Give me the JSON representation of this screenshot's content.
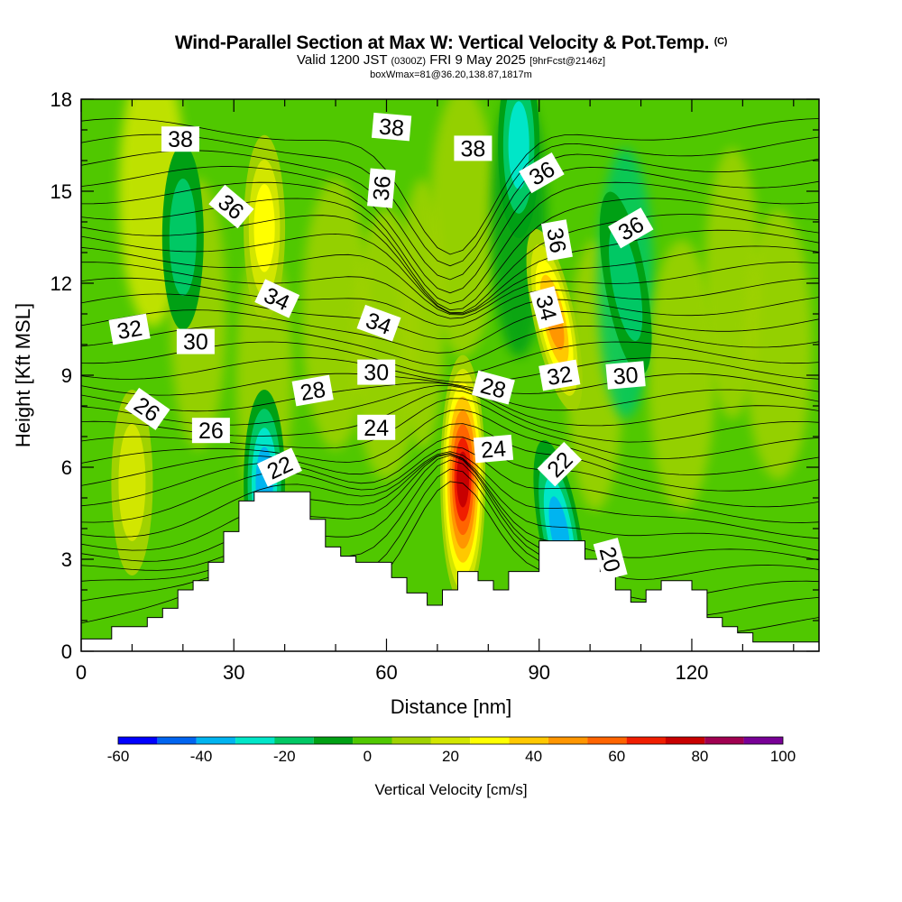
{
  "title": {
    "main": "Wind-Parallel Section at Max W: Vertical Velocity & Pot.Temp.",
    "copyright": "(C)",
    "valid_prefix": "Valid 1200 JST",
    "valid_utc": "(0300Z)",
    "valid_date": "FRI 9 May 2025",
    "forecast": "[9hrFcst@2146z]",
    "box_info": "boxWmax=81@36.20,138.87,1817m"
  },
  "chart_data": {
    "type": "heatmap",
    "xlabel": "Distance [nm]",
    "ylabel": "Height [Kft MSL]",
    "xlim": [
      0,
      145
    ],
    "ylim": [
      0,
      18
    ],
    "x_ticks": [
      "0",
      "30",
      "60",
      "90",
      "120"
    ],
    "y_ticks": [
      "0",
      "3",
      "6",
      "9",
      "12",
      "15",
      "18"
    ],
    "colorbar": {
      "label": "Vertical Velocity [cm/s]",
      "ticks": [
        "-60",
        "-40",
        "-20",
        "0",
        "20",
        "40",
        "60",
        "80",
        "100"
      ],
      "bounds": [
        -60,
        100
      ],
      "colors": [
        "#0000ff",
        "#0064f0",
        "#00b4f0",
        "#00e6c8",
        "#00c864",
        "#00a014",
        "#50c800",
        "#a0d200",
        "#d2e600",
        "#ffff00",
        "#ffc800",
        "#ff9600",
        "#ff6400",
        "#f01e00",
        "#c80000",
        "#a00050",
        "#780096"
      ]
    },
    "terrain_kft": [
      [
        0,
        0.4
      ],
      [
        6,
        0.4
      ],
      [
        6,
        0.8
      ],
      [
        13,
        0.8
      ],
      [
        13,
        1.1
      ],
      [
        16,
        1.1
      ],
      [
        16,
        1.4
      ],
      [
        19,
        1.4
      ],
      [
        19,
        2.0
      ],
      [
        22,
        2.0
      ],
      [
        22,
        2.3
      ],
      [
        25,
        2.3
      ],
      [
        25,
        2.9
      ],
      [
        28,
        2.9
      ],
      [
        28,
        3.9
      ],
      [
        31,
        3.9
      ],
      [
        31,
        4.9
      ],
      [
        34,
        4.9
      ],
      [
        34,
        5.2
      ],
      [
        45,
        5.2
      ],
      [
        45,
        4.3
      ],
      [
        48,
        4.3
      ],
      [
        48,
        3.4
      ],
      [
        51,
        3.4
      ],
      [
        51,
        3.1
      ],
      [
        54,
        3.1
      ],
      [
        54,
        2.9
      ],
      [
        61,
        2.9
      ],
      [
        61,
        2.4
      ],
      [
        64,
        2.4
      ],
      [
        64,
        1.9
      ],
      [
        68,
        1.9
      ],
      [
        68,
        1.5
      ],
      [
        71,
        1.5
      ],
      [
        71,
        2.0
      ],
      [
        74,
        2.0
      ],
      [
        74,
        2.6
      ],
      [
        78,
        2.6
      ],
      [
        78,
        2.3
      ],
      [
        81,
        2.3
      ],
      [
        81,
        2.0
      ],
      [
        84,
        2.0
      ],
      [
        84,
        2.6
      ],
      [
        90,
        2.6
      ],
      [
        90,
        3.6
      ],
      [
        99,
        3.6
      ],
      [
        99,
        3.0
      ],
      [
        102,
        3.0
      ],
      [
        102,
        2.6
      ],
      [
        105,
        2.6
      ],
      [
        105,
        2.0
      ],
      [
        108,
        2.0
      ],
      [
        108,
        1.6
      ],
      [
        111,
        1.6
      ],
      [
        111,
        2.0
      ],
      [
        114,
        2.0
      ],
      [
        114,
        2.3
      ],
      [
        120,
        2.3
      ],
      [
        120,
        2.0
      ],
      [
        123,
        2.0
      ],
      [
        123,
        1.1
      ],
      [
        126,
        1.1
      ],
      [
        126,
        0.8
      ],
      [
        129,
        0.8
      ],
      [
        129,
        0.6
      ],
      [
        132,
        0.6
      ],
      [
        132,
        0.3
      ],
      [
        145,
        0.3
      ]
    ],
    "vertical_velocity_features_cm_s": [
      {
        "x": 75,
        "y": 5.6,
        "value": 81
      },
      {
        "x": 93,
        "y": 10.8,
        "value": 55
      },
      {
        "x": 36,
        "y": 13.8,
        "value": 30
      },
      {
        "x": 10,
        "y": 5.5,
        "value": 25
      },
      {
        "x": 94,
        "y": 3.9,
        "value": -45
      },
      {
        "x": 36,
        "y": 5.5,
        "value": -40
      },
      {
        "x": 86,
        "y": 16.5,
        "value": -30
      },
      {
        "x": 20,
        "y": 13.5,
        "value": -25
      },
      {
        "x": 107,
        "y": 12.0,
        "value": -20
      }
    ],
    "isentropes_label_interval": 2,
    "contour_labels": [
      {
        "text": "38",
        "x": 19.5,
        "y": 16.7,
        "rot": 0
      },
      {
        "text": "38",
        "x": 61,
        "y": 17.1,
        "rot": 5
      },
      {
        "text": "38",
        "x": 77,
        "y": 16.4,
        "rot": 0
      },
      {
        "text": "36",
        "x": 29.5,
        "y": 14.5,
        "rot": 40
      },
      {
        "text": "36",
        "x": 59,
        "y": 15.1,
        "rot": -85
      },
      {
        "text": "36",
        "x": 90.5,
        "y": 15.6,
        "rot": -30
      },
      {
        "text": "36",
        "x": 93.5,
        "y": 13.4,
        "rot": 80
      },
      {
        "text": "36",
        "x": 108,
        "y": 13.8,
        "rot": -30
      },
      {
        "text": "34",
        "x": 38.5,
        "y": 11.5,
        "rot": 25
      },
      {
        "text": "34",
        "x": 58.5,
        "y": 10.7,
        "rot": 20
      },
      {
        "text": "34",
        "x": 91.5,
        "y": 11.2,
        "rot": 75
      },
      {
        "text": "32",
        "x": 9.5,
        "y": 10.5,
        "rot": -10
      },
      {
        "text": "32",
        "x": 94,
        "y": 9.0,
        "rot": -10
      },
      {
        "text": "30",
        "x": 22.5,
        "y": 10.1,
        "rot": 0
      },
      {
        "text": "30",
        "x": 58,
        "y": 9.1,
        "rot": 0
      },
      {
        "text": "30",
        "x": 107,
        "y": 9.0,
        "rot": -5
      },
      {
        "text": "28",
        "x": 45.5,
        "y": 8.5,
        "rot": -10
      },
      {
        "text": "28",
        "x": 81,
        "y": 8.6,
        "rot": 15
      },
      {
        "text": "26",
        "x": 13,
        "y": 7.9,
        "rot": 35
      },
      {
        "text": "26",
        "x": 25.5,
        "y": 7.2,
        "rot": 0
      },
      {
        "text": "24",
        "x": 58,
        "y": 7.3,
        "rot": 0
      },
      {
        "text": "24",
        "x": 81,
        "y": 6.6,
        "rot": -5
      },
      {
        "text": "22",
        "x": 39,
        "y": 6.0,
        "rot": -25
      },
      {
        "text": "22",
        "x": 94,
        "y": 6.1,
        "rot": -45
      },
      {
        "text": "20",
        "x": 104,
        "y": 3.0,
        "rot": 75
      }
    ]
  }
}
